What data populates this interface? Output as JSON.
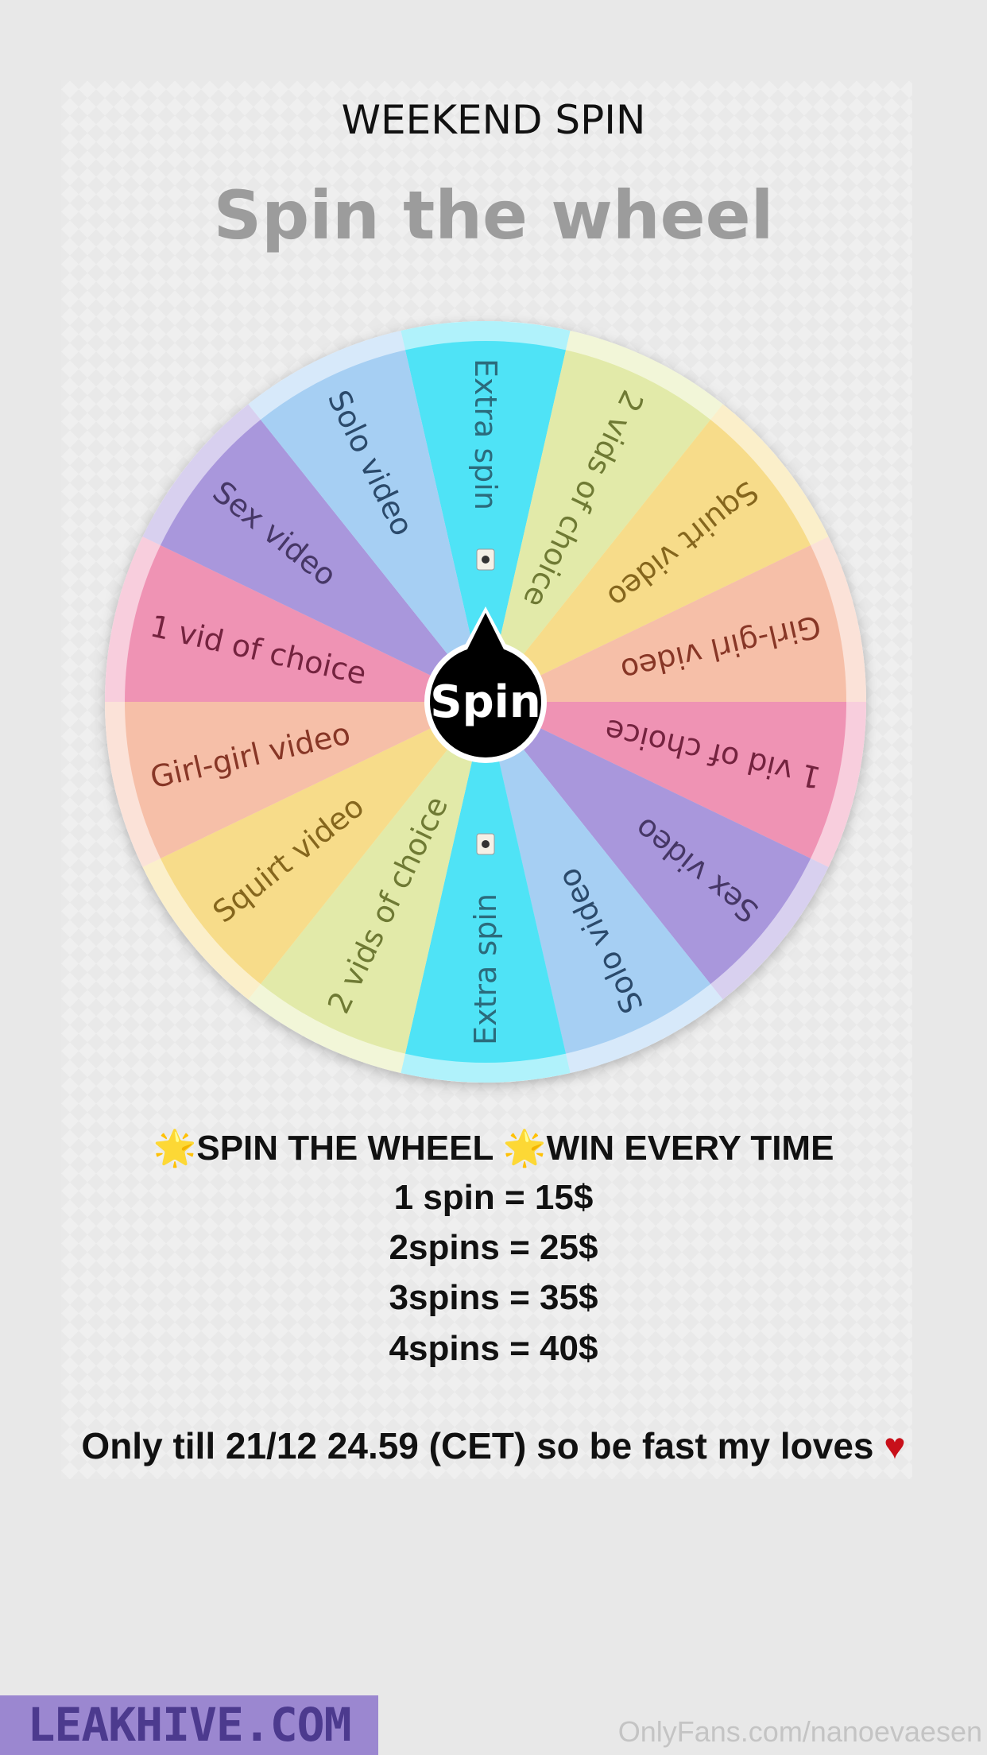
{
  "header": {
    "title": "WEEKEND SPIN",
    "subtitle": "Spin the wheel"
  },
  "wheel": {
    "center_label": "Spin",
    "segments": [
      {
        "label": "Extra spin",
        "color": "#4fe3f6",
        "text_color": "#2b6b7c",
        "emoji": true
      },
      {
        "label": "2 vids of choice",
        "color": "#e2eaa9",
        "text_color": "#6f7a34"
      },
      {
        "label": "Squirt video",
        "color": "#f7dc8a",
        "text_color": "#85661d"
      },
      {
        "label": "Girl-girl video",
        "color": "#f6bfa8",
        "text_color": "#873626"
      },
      {
        "label": "1 vid of choice",
        "color": "#ef93b4",
        "text_color": "#74233f"
      },
      {
        "label": "Sex video",
        "color": "#a997dc",
        "text_color": "#463766"
      },
      {
        "label": "Solo video",
        "color": "#a6cff3",
        "text_color": "#2b4a6b"
      },
      {
        "label": "Extra spin",
        "color": "#4fe3f6",
        "text_color": "#2b6b7c",
        "emoji": true
      },
      {
        "label": "2 vids of choice",
        "color": "#e2eaa9",
        "text_color": "#6f7a34"
      },
      {
        "label": "Squirt video",
        "color": "#f7dc8a",
        "text_color": "#85661d"
      },
      {
        "label": "Girl-girl video",
        "color": "#f6bfa8",
        "text_color": "#873626"
      },
      {
        "label": "1 vid of choice",
        "color": "#ef93b4",
        "text_color": "#74233f"
      },
      {
        "label": "Sex video",
        "color": "#a997dc",
        "text_color": "#463766"
      },
      {
        "label": "Solo video",
        "color": "#a6cff3",
        "text_color": "#2b4a6b"
      }
    ]
  },
  "promo": {
    "star_icon": "🌟",
    "part1": "SPIN THE WHEEL ",
    "part2": "WIN EVERY TIME",
    "prices": [
      "1 spin = 15$",
      "2spins = 25$",
      "3spins = 35$",
      "4spins = 40$"
    ],
    "deadline": "Only till 21/12 24.59 (CET) so be fast my loves ",
    "heart_icon": "♥"
  },
  "watermark": {
    "site": "LEAKHIVE.COM",
    "credit": "OnlyFans.com/nanoevaesen"
  }
}
